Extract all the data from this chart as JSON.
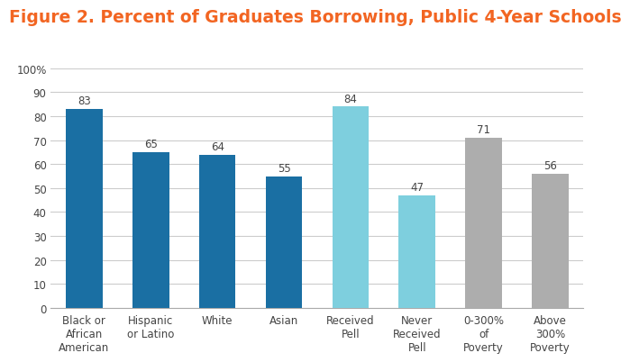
{
  "title": "Figure 2. Percent of Graduates Borrowing, Public 4-Year Schools",
  "title_color": "#F26522",
  "title_fontsize": 13.5,
  "categories": [
    "Black or\nAfrican\nAmerican",
    "Hispanic\nor Latino",
    "White",
    "Asian",
    "Received\nPell",
    "Never\nReceived\nPell",
    "0-300%\nof\nPoverty",
    "Above\n300%\nPoverty"
  ],
  "values": [
    83,
    65,
    64,
    55,
    84,
    47,
    71,
    56
  ],
  "bar_colors": [
    "#1A6FA3",
    "#1A6FA3",
    "#1A6FA3",
    "#1A6FA3",
    "#7ECFDE",
    "#7ECFDE",
    "#ADADAD",
    "#ADADAD"
  ],
  "ylim": [
    0,
    100
  ],
  "yticks": [
    0,
    10,
    20,
    30,
    40,
    50,
    60,
    70,
    80,
    90,
    100
  ],
  "ytick_labels": [
    "0",
    "10",
    "20",
    "30",
    "40",
    "50",
    "60",
    "70",
    "80",
    "90",
    "100%"
  ],
  "background_color": "#FFFFFF",
  "grid_color": "#CCCCCC",
  "label_fontsize": 8.5,
  "value_fontsize": 8.5,
  "bar_width": 0.55
}
